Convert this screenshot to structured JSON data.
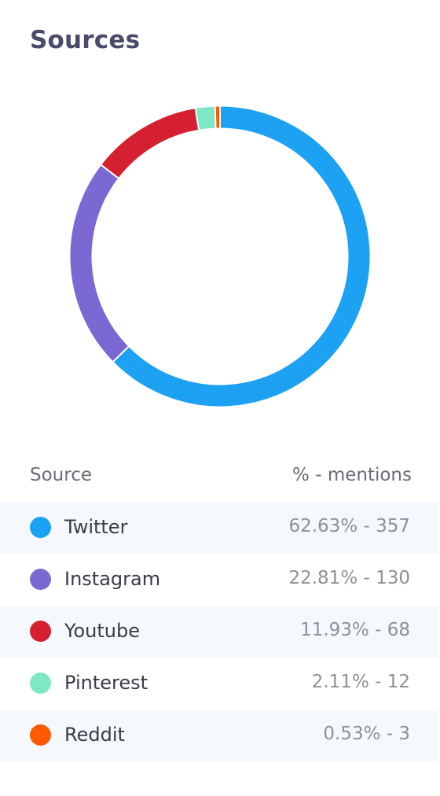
{
  "title": "Sources",
  "table": {
    "col_source": "Source",
    "col_value": "% - mentions",
    "rows": [
      {
        "name": "Twitter",
        "value_text": "62.63% - 357",
        "color": "#1da1f2"
      },
      {
        "name": "Instagram",
        "value_text": "22.81% - 130",
        "color": "#7b68d2"
      },
      {
        "name": "Youtube",
        "value_text": "11.93% - 68",
        "color": "#d42030"
      },
      {
        "name": "Pinterest",
        "value_text": "2.11% - 12",
        "color": "#7ee8c6"
      },
      {
        "name": "Reddit",
        "value_text": "0.53% - 3",
        "color": "#ff5a00"
      }
    ]
  },
  "chart_data": {
    "type": "pie",
    "style": "donut",
    "categories": [
      "Twitter",
      "Instagram",
      "Youtube",
      "Pinterest",
      "Reddit"
    ],
    "values": [
      62.63,
      22.81,
      11.93,
      2.11,
      0.53
    ],
    "mentions": [
      357,
      130,
      68,
      12,
      3
    ],
    "colors": [
      "#1da1f2",
      "#7b68d2",
      "#d42030",
      "#7ee8c6",
      "#ff5a00"
    ]
  }
}
